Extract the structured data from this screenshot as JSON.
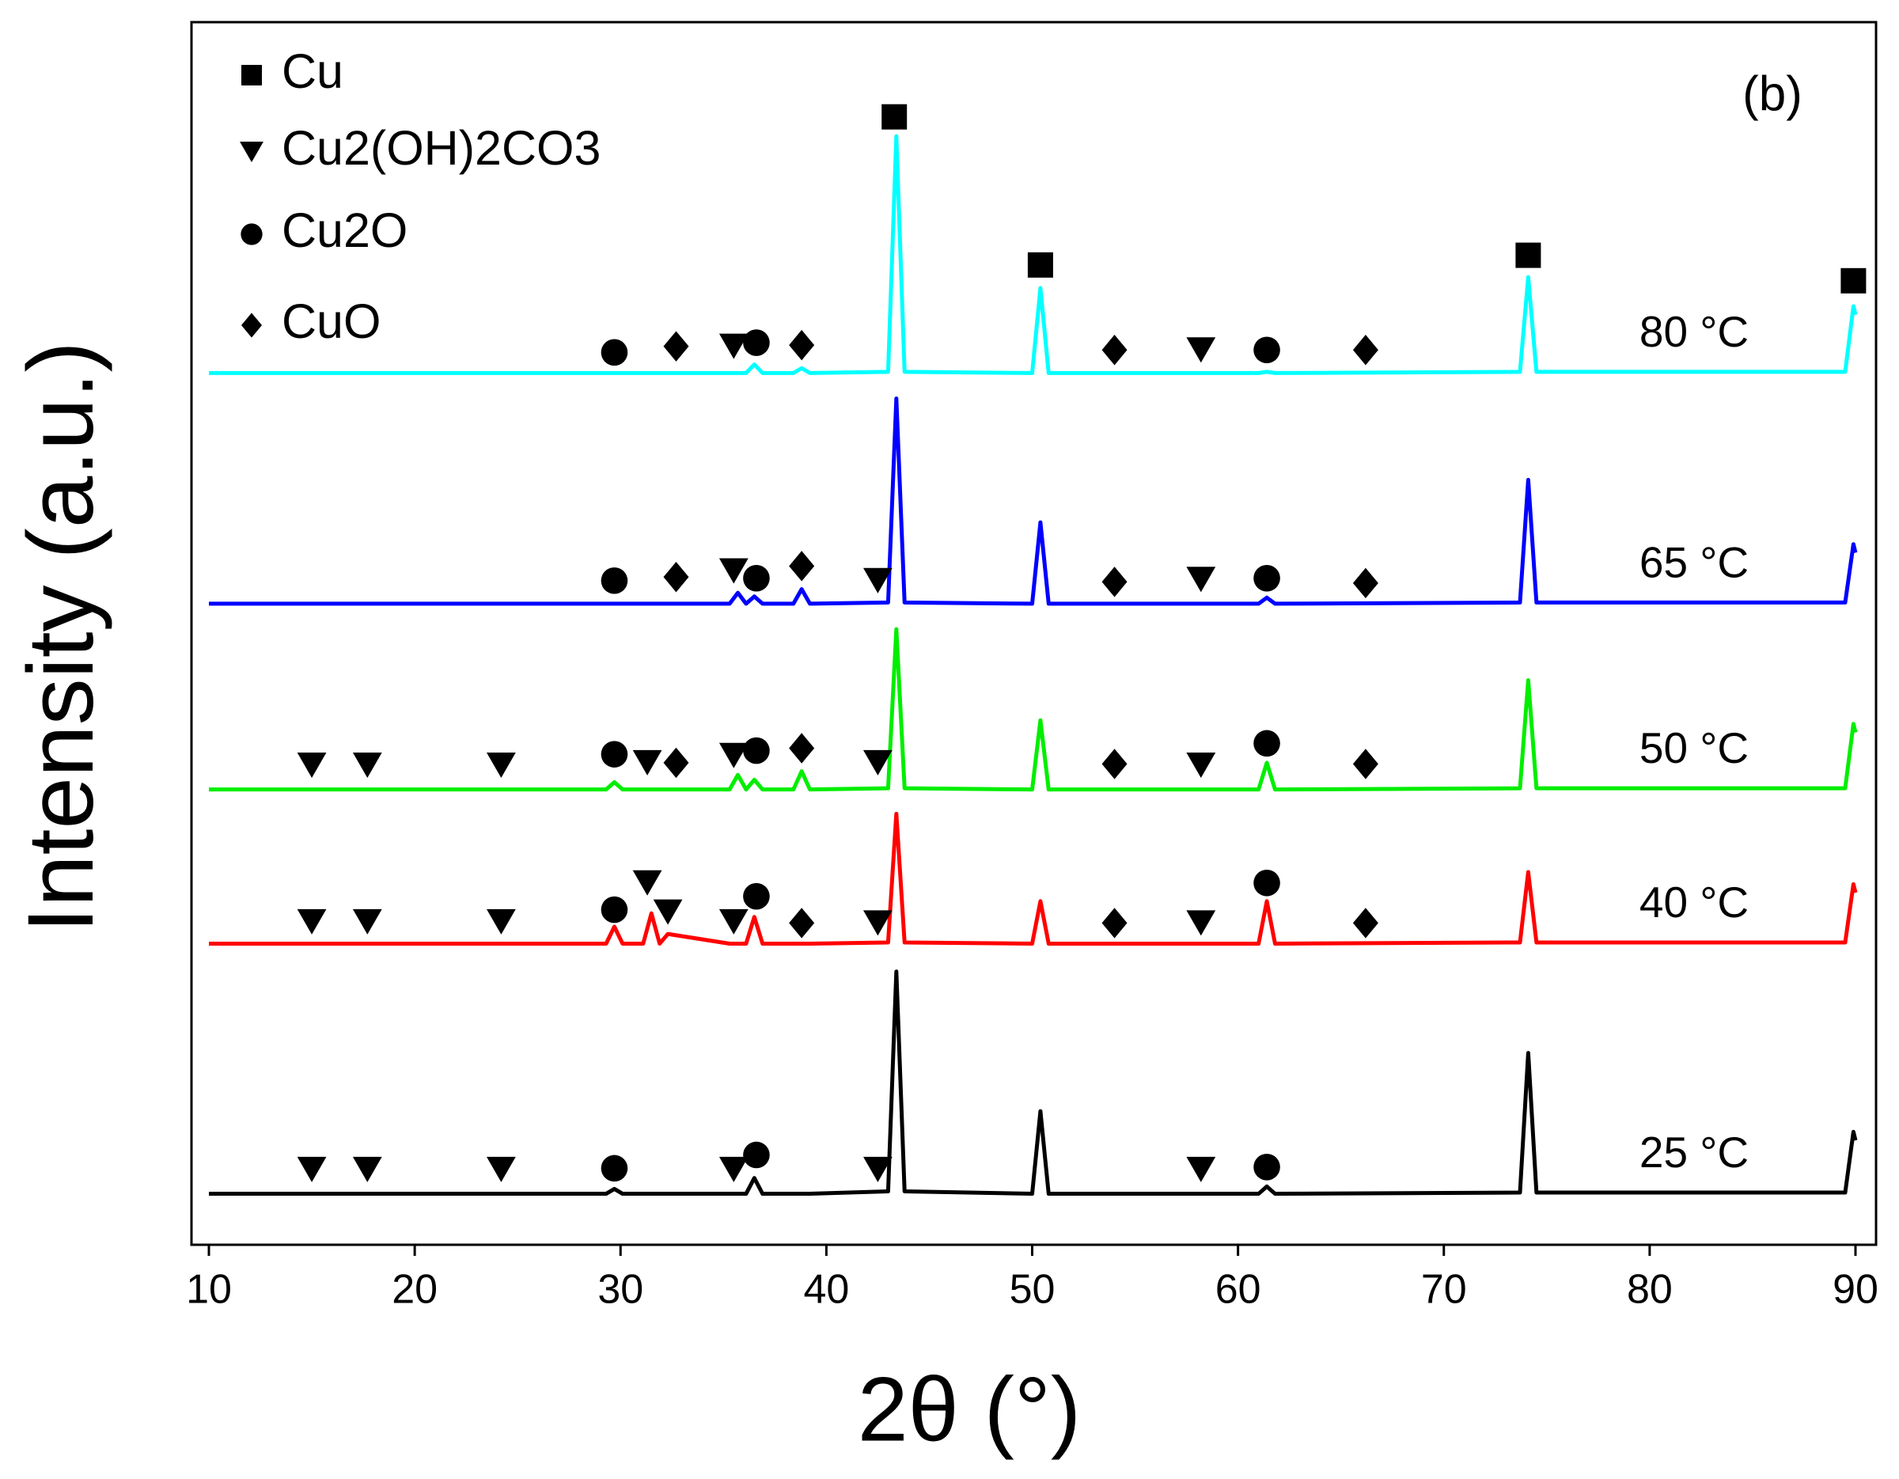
{
  "chart_data": {
    "type": "line",
    "xlabel": "2θ (°)",
    "ylabel": "Intensity (a.u.)",
    "annotation": "(b)",
    "xlim": [
      10,
      90
    ],
    "xticks": [
      10,
      20,
      30,
      40,
      50,
      60,
      70,
      80,
      90
    ],
    "ylim": [
      0,
      1007
    ],
    "x": [
      10,
      29.3,
      29.7,
      30.1,
      31.1,
      31.5,
      31.9,
      32.3,
      35.3,
      35.7,
      36.1,
      36.5,
      36.9,
      38.4,
      38.8,
      39.2,
      43.0,
      43.4,
      43.8,
      50.0,
      50.4,
      50.8,
      61.0,
      61.4,
      61.8,
      73.7,
      74.1,
      74.5,
      89.5,
      89.9,
      90
    ],
    "series": [
      {
        "name": "25 °C",
        "color": "#000000",
        "values": [
          42,
          42,
          46,
          42,
          42,
          42,
          42,
          42,
          42,
          42,
          42,
          55,
          42,
          42,
          42,
          42,
          44,
          225,
          44,
          42,
          110,
          42,
          42,
          48,
          42,
          43,
          158,
          43,
          43,
          93,
          86
        ]
      },
      {
        "name": "40 °C",
        "color": "#ff0000",
        "values": [
          248,
          248,
          262,
          248,
          248,
          273,
          248,
          256,
          248,
          248,
          248,
          270,
          248,
          248,
          248,
          248,
          249,
          355,
          249,
          248,
          283,
          248,
          248,
          283,
          248,
          249,
          307,
          249,
          249,
          297,
          290
        ]
      },
      {
        "name": "50 °C",
        "color": "#00ee00",
        "values": [
          375,
          375,
          381,
          375,
          375,
          375,
          375,
          375,
          375,
          387,
          375,
          383,
          375,
          375,
          390,
          375,
          376,
          507,
          376,
          375,
          432,
          375,
          375,
          397,
          375,
          376,
          465,
          376,
          376,
          429,
          422
        ]
      },
      {
        "name": "65 °C",
        "color": "#0000ff",
        "values": [
          528,
          528,
          528,
          528,
          528,
          528,
          528,
          528,
          528,
          537,
          528,
          534,
          528,
          528,
          540,
          528,
          529,
          697,
          529,
          528,
          595,
          528,
          528,
          533,
          528,
          529,
          630,
          529,
          529,
          577,
          570
        ]
      },
      {
        "name": "80 °C",
        "color": "#00ffff",
        "values": [
          718,
          718,
          718,
          718,
          718,
          718,
          718,
          718,
          718,
          718,
          718,
          725,
          718,
          718,
          722,
          718,
          719,
          913,
          719,
          718,
          788,
          718,
          718,
          719,
          718,
          719,
          797,
          719,
          719,
          773,
          766
        ]
      }
    ],
    "phases": [
      {
        "name": "Cu",
        "symbol": "square"
      },
      {
        "name": "Cu2(OH)2CO3",
        "symbol": "triangle"
      },
      {
        "name": "Cu2O",
        "symbol": "circle"
      },
      {
        "name": "CuO",
        "symbol": "diamond"
      }
    ],
    "markers": [
      {
        "phase": 2,
        "x": 29.7,
        "y": 735
      },
      {
        "phase": 3,
        "x": 32.7,
        "y": 740
      },
      {
        "phase": 1,
        "x": 35.5,
        "y": 740
      },
      {
        "phase": 2,
        "x": 36.6,
        "y": 743
      },
      {
        "phase": 3,
        "x": 38.8,
        "y": 741
      },
      {
        "phase": 0,
        "x": 43.3,
        "y": 929
      },
      {
        "phase": 0,
        "x": 50.4,
        "y": 807
      },
      {
        "phase": 3,
        "x": 54,
        "y": 737
      },
      {
        "phase": 1,
        "x": 58.2,
        "y": 737
      },
      {
        "phase": 2,
        "x": 61.4,
        "y": 737
      },
      {
        "phase": 3,
        "x": 66.2,
        "y": 737
      },
      {
        "phase": 0,
        "x": 74.1,
        "y": 815
      },
      {
        "phase": 0,
        "x": 89.9,
        "y": 794
      },
      {
        "phase": 2,
        "x": 29.7,
        "y": 547
      },
      {
        "phase": 3,
        "x": 32.7,
        "y": 550
      },
      {
        "phase": 1,
        "x": 35.5,
        "y": 555
      },
      {
        "phase": 2,
        "x": 36.6,
        "y": 549
      },
      {
        "phase": 3,
        "x": 38.8,
        "y": 559
      },
      {
        "phase": 1,
        "x": 42.5,
        "y": 547
      },
      {
        "phase": 3,
        "x": 54,
        "y": 546
      },
      {
        "phase": 1,
        "x": 58.2,
        "y": 548
      },
      {
        "phase": 2,
        "x": 61.4,
        "y": 549
      },
      {
        "phase": 3,
        "x": 66.2,
        "y": 545
      },
      {
        "phase": 1,
        "x": 15,
        "y": 395
      },
      {
        "phase": 1,
        "x": 17.7,
        "y": 395
      },
      {
        "phase": 1,
        "x": 24.2,
        "y": 395
      },
      {
        "phase": 2,
        "x": 29.7,
        "y": 404
      },
      {
        "phase": 1,
        "x": 31.3,
        "y": 397
      },
      {
        "phase": 3,
        "x": 32.7,
        "y": 397
      },
      {
        "phase": 1,
        "x": 35.5,
        "y": 403
      },
      {
        "phase": 2,
        "x": 36.6,
        "y": 407
      },
      {
        "phase": 3,
        "x": 38.8,
        "y": 409
      },
      {
        "phase": 1,
        "x": 42.5,
        "y": 397
      },
      {
        "phase": 3,
        "x": 54,
        "y": 396
      },
      {
        "phase": 1,
        "x": 58.2,
        "y": 395
      },
      {
        "phase": 2,
        "x": 61.4,
        "y": 413
      },
      {
        "phase": 3,
        "x": 66.2,
        "y": 396
      },
      {
        "phase": 1,
        "x": 15,
        "y": 266
      },
      {
        "phase": 1,
        "x": 17.7,
        "y": 266
      },
      {
        "phase": 1,
        "x": 24.2,
        "y": 266
      },
      {
        "phase": 2,
        "x": 29.7,
        "y": 276
      },
      {
        "phase": 1,
        "x": 31.3,
        "y": 298
      },
      {
        "phase": 1,
        "x": 32.3,
        "y": 274
      },
      {
        "phase": 1,
        "x": 35.5,
        "y": 266
      },
      {
        "phase": 2,
        "x": 36.6,
        "y": 287
      },
      {
        "phase": 3,
        "x": 38.8,
        "y": 265
      },
      {
        "phase": 1,
        "x": 42.5,
        "y": 265
      },
      {
        "phase": 3,
        "x": 54,
        "y": 265
      },
      {
        "phase": 1,
        "x": 58.2,
        "y": 265
      },
      {
        "phase": 2,
        "x": 61.4,
        "y": 298
      },
      {
        "phase": 3,
        "x": 66.2,
        "y": 265
      },
      {
        "phase": 1,
        "x": 15,
        "y": 62
      },
      {
        "phase": 1,
        "x": 17.7,
        "y": 62
      },
      {
        "phase": 1,
        "x": 24.2,
        "y": 62
      },
      {
        "phase": 2,
        "x": 29.7,
        "y": 63
      },
      {
        "phase": 1,
        "x": 35.5,
        "y": 62
      },
      {
        "phase": 2,
        "x": 36.6,
        "y": 74
      },
      {
        "phase": 1,
        "x": 42.5,
        "y": 62
      },
      {
        "phase": 1,
        "x": 58.2,
        "y": 62
      },
      {
        "phase": 2,
        "x": 61.4,
        "y": 64
      }
    ]
  }
}
